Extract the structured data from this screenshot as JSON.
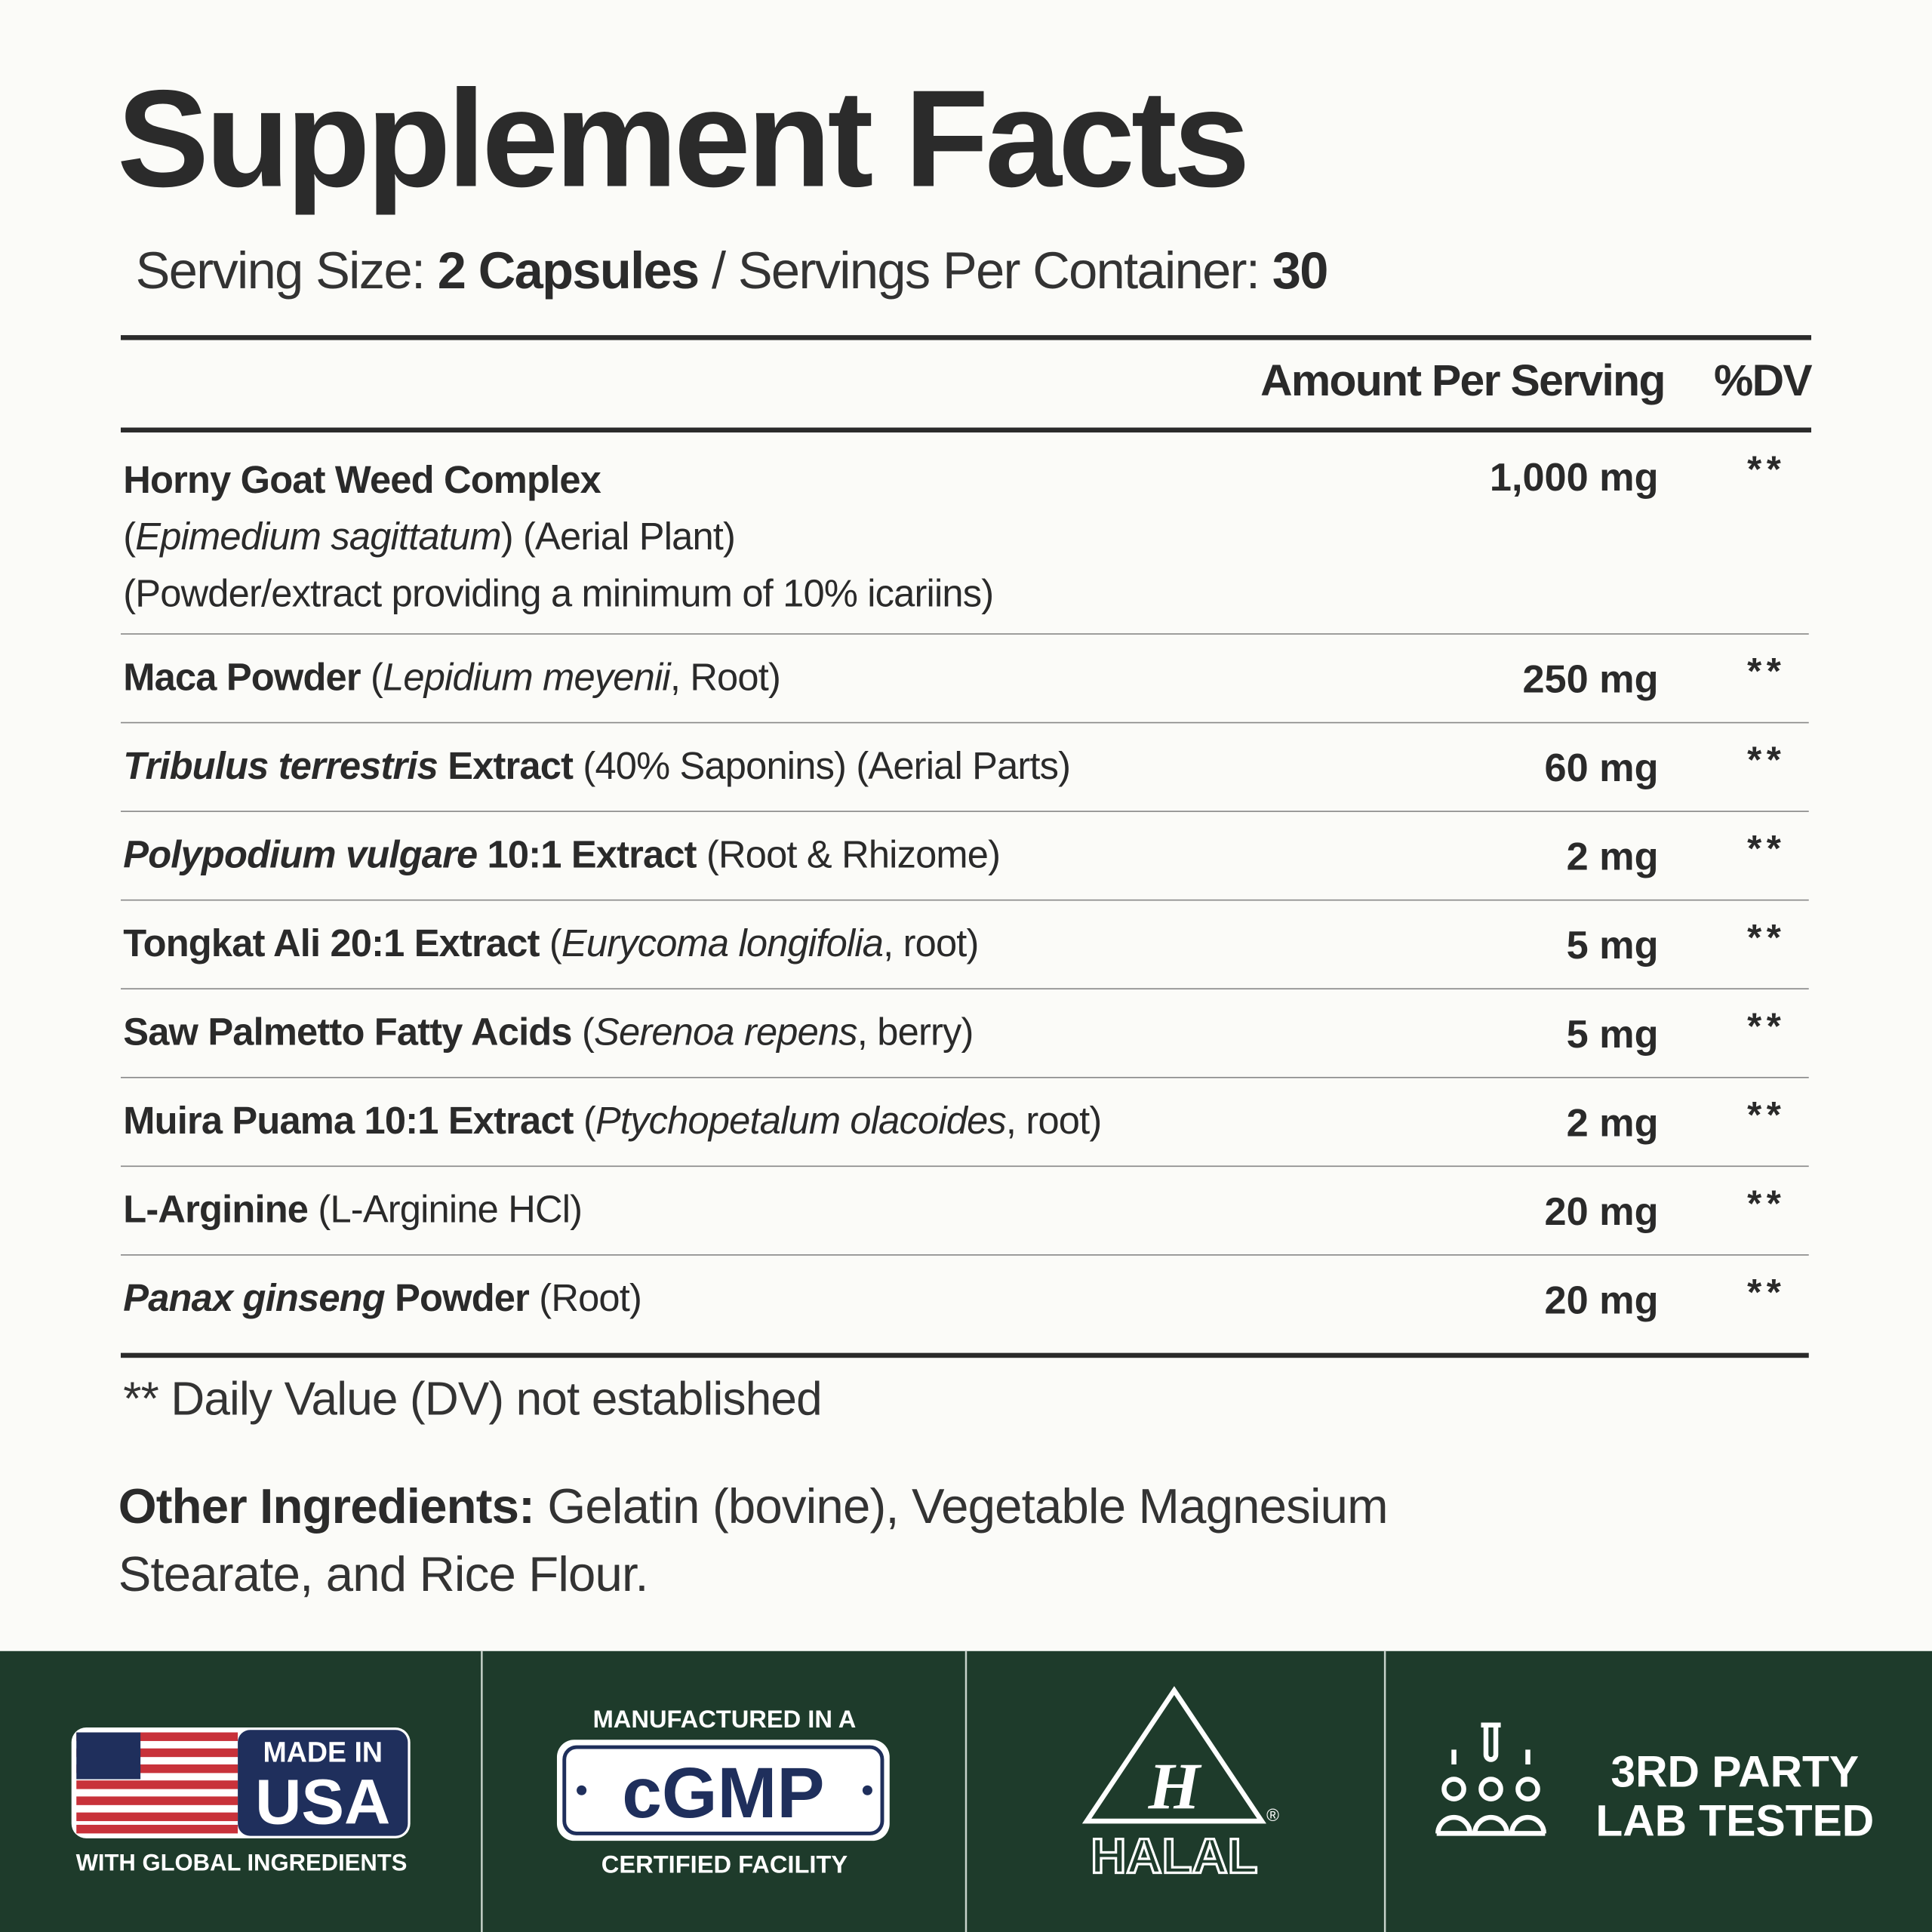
{
  "title": "Supplement Facts",
  "serving": {
    "size_label": "Serving Size:",
    "size": "2 Capsules",
    "separator": "/",
    "per_container_label": "Servings Per Container:",
    "per_container": "30"
  },
  "header": {
    "amount": "Amount Per Serving",
    "dv": "%DV"
  },
  "rows": [
    {
      "lines": [
        [
          {
            "text": "Horny Goat Weed Complex",
            "style": "bold"
          }
        ],
        [
          {
            "text": "(",
            "style": "regular"
          },
          {
            "text": "Epimedium sagittatum",
            "style": "italic"
          },
          {
            "text": ") (Aerial Plant)",
            "style": "regular"
          }
        ],
        [
          {
            "text": "(Powder/extract providing a minimum of 10% icariins)",
            "style": "regular"
          }
        ]
      ],
      "amount": "1,000 mg",
      "dv": "**"
    },
    {
      "lines": [
        [
          {
            "text": "Maca Powder",
            "style": "bold"
          },
          {
            "text": " (",
            "style": "regular"
          },
          {
            "text": "Lepidium meyenii",
            "style": "italic"
          },
          {
            "text": ", Root)",
            "style": "regular"
          }
        ]
      ],
      "amount": "250 mg",
      "dv": "**"
    },
    {
      "lines": [
        [
          {
            "text": "Tribulus terrestris",
            "style": "bold-italic"
          },
          {
            "text": " Extract",
            "style": "bold"
          },
          {
            "text": " (40% Saponins) (Aerial Parts)",
            "style": "regular"
          }
        ]
      ],
      "amount": "60 mg",
      "dv": "**"
    },
    {
      "lines": [
        [
          {
            "text": "Polypodium vulgare",
            "style": "bold-italic"
          },
          {
            "text": " 10:1 Extract",
            "style": "bold"
          },
          {
            "text": " (Root & Rhizome)",
            "style": "regular"
          }
        ]
      ],
      "amount": "2 mg",
      "dv": "**"
    },
    {
      "lines": [
        [
          {
            "text": "Tongkat Ali 20:1 Extract",
            "style": "bold"
          },
          {
            "text": " (",
            "style": "regular"
          },
          {
            "text": "Eurycoma longifolia",
            "style": "italic"
          },
          {
            "text": ", root)",
            "style": "regular"
          }
        ]
      ],
      "amount": "5 mg",
      "dv": "**"
    },
    {
      "lines": [
        [
          {
            "text": "Saw Palmetto Fatty Acids",
            "style": "bold"
          },
          {
            "text": " (",
            "style": "regular"
          },
          {
            "text": "Serenoa repens",
            "style": "italic"
          },
          {
            "text": ", berry)",
            "style": "regular"
          }
        ]
      ],
      "amount": "5 mg",
      "dv": "**"
    },
    {
      "lines": [
        [
          {
            "text": "Muira Puama 10:1 Extract",
            "style": "bold"
          },
          {
            "text": " (",
            "style": "regular"
          },
          {
            "text": "Ptychopetalum olacoides",
            "style": "italic"
          },
          {
            "text": ", root)",
            "style": "regular"
          }
        ]
      ],
      "amount": "2 mg",
      "dv": "**"
    },
    {
      "lines": [
        [
          {
            "text": "L-Arginine",
            "style": "bold"
          },
          {
            "text": " (L-Arginine HCl)",
            "style": "regular"
          }
        ]
      ],
      "amount": "20 mg",
      "dv": "**"
    },
    {
      "lines": [
        [
          {
            "text": "Panax ginseng",
            "style": "bold-italic"
          },
          {
            "text": " Powder",
            "style": "bold"
          },
          {
            "text": " (Root)",
            "style": "regular"
          }
        ]
      ],
      "amount": "20 mg",
      "dv": "**"
    }
  ],
  "footnote": "** Daily Value (DV) not established",
  "other_ingredients": {
    "label": "Other Ingredients:",
    "text": "Gelatin (bovine), Vegetable Magnesium Stearate, and Rice Flour."
  },
  "badges": {
    "usa": {
      "line1": "MADE IN",
      "line2": "USA",
      "caption": "WITH GLOBAL INGREDIENTS"
    },
    "cgmp": {
      "top": "MANUFACTURED IN A",
      "mark": "cGMP",
      "bottom": "CERTIFIED FACILITY"
    },
    "halal": {
      "letter": "H",
      "word": "HALAL",
      "registered": "®"
    },
    "lab": {
      "line1": "3RD PARTY",
      "line2": "LAB TESTED"
    }
  }
}
